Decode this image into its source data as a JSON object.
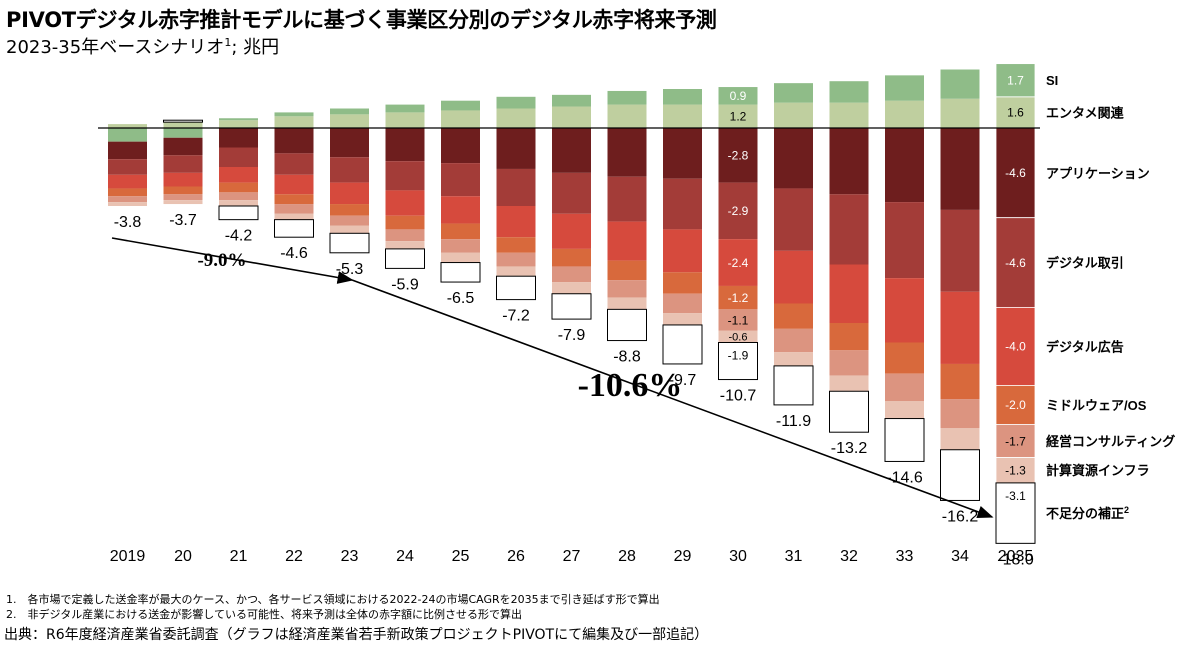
{
  "title": "PIVOTデジタル赤字推計モデルに基づく事業区分別のデジタル赤字将来予測",
  "subtitle": "2023-35年ベースシナリオ",
  "subtitle_sup": "1",
  "subtitle_unit": "; 兆円",
  "footnotes": [
    "1.　各市場で定義した送金率が最大のケース、かつ、各サービス領域における2022-24の市場CAGRを2035まで引き延ばす形で算出",
    "2.　非デジタル産業における送金が影響している可能性、将来予測は全体の赤字額に比例させる形で算出"
  ],
  "source": "出典：R6年度経済産業省委託調査（グラフは経済産業省若手新政策プロジェクトPIVOTにて編集及び一部追記）",
  "colors": {
    "entertainment": "#bfcf9f",
    "si": "#8fbc88",
    "application": "#6e1e1e",
    "digital_trade": "#a33c38",
    "digital_ad": "#d64a3d",
    "middleware": "#d8693c",
    "consulting": "#dc9480",
    "computing_infra": "#e9c2b2",
    "correction_border": "#000000"
  },
  "chart_data": {
    "type": "bar",
    "stacked": true,
    "unit": "兆円",
    "categories": [
      "2019",
      "20",
      "21",
      "22",
      "23",
      "24",
      "25",
      "26",
      "27",
      "28",
      "29",
      "30",
      "31",
      "32",
      "33",
      "34",
      "2035"
    ],
    "totals": [
      -3.8,
      -3.7,
      -4.2,
      -4.6,
      -5.3,
      -5.9,
      -6.5,
      -7.2,
      -7.9,
      -8.8,
      -9.7,
      -10.7,
      -11.9,
      -13.2,
      -14.6,
      -16.2,
      -18.0
    ],
    "series": [
      {
        "name": "エンタメ関連",
        "color_key": "entertainment",
        "labels": {
          "11": "1.2",
          "16": "1.6"
        },
        "values": [
          0.2,
          0.3,
          0.4,
          0.6,
          0.7,
          0.8,
          0.9,
          1.0,
          1.1,
          1.2,
          1.2,
          1.2,
          1.3,
          1.3,
          1.4,
          1.5,
          1.6
        ]
      },
      {
        "name": "SI",
        "color_key": "si",
        "labels": {
          "11": "0.9",
          "16": "1.7"
        },
        "values": [
          -0.7,
          -0.5,
          0.1,
          0.2,
          0.3,
          0.4,
          0.5,
          0.6,
          0.6,
          0.7,
          0.8,
          0.9,
          1.0,
          1.1,
          1.3,
          1.5,
          1.7
        ]
      },
      {
        "name": "アプリケーション",
        "color_key": "application",
        "labels": {
          "11": "-2.8",
          "16": "-4.6"
        },
        "values": [
          -0.9,
          -0.9,
          -1.0,
          -1.3,
          -1.5,
          -1.7,
          -1.8,
          -2.1,
          -2.3,
          -2.5,
          -2.6,
          -2.8,
          -3.1,
          -3.4,
          -3.8,
          -4.2,
          -4.6
        ]
      },
      {
        "name": "デジタル取引",
        "color_key": "digital_trade",
        "labels": {
          "11": "-2.9",
          "16": "-4.6"
        },
        "values": [
          -0.8,
          -0.9,
          -1.0,
          -1.1,
          -1.3,
          -1.5,
          -1.7,
          -1.9,
          -2.1,
          -2.3,
          -2.6,
          -2.9,
          -3.2,
          -3.6,
          -3.9,
          -4.2,
          -4.6
        ]
      },
      {
        "name": "デジタル広告",
        "color_key": "digital_ad",
        "labels": {
          "11": "-2.4",
          "16": "-4.0"
        },
        "values": [
          -0.7,
          -0.7,
          -0.8,
          -1.0,
          -1.1,
          -1.3,
          -1.4,
          -1.6,
          -1.8,
          -2.0,
          -2.2,
          -2.4,
          -2.7,
          -3.0,
          -3.3,
          -3.7,
          -4.0
        ]
      },
      {
        "name": "ミドルウェア/OS",
        "color_key": "middleware",
        "labels": {
          "11": "-1.2",
          "16": "-2.0"
        },
        "values": [
          -0.4,
          -0.4,
          -0.5,
          -0.5,
          -0.6,
          -0.7,
          -0.8,
          -0.8,
          -0.9,
          -1.0,
          -1.1,
          -1.2,
          -1.3,
          -1.4,
          -1.6,
          -1.8,
          -2.0
        ]
      },
      {
        "name": "経営コンサルティング",
        "color_key": "consulting",
        "labels": {
          "11": "-1.1",
          "16": "-1.7"
        },
        "values": [
          -0.3,
          -0.3,
          -0.4,
          -0.5,
          -0.5,
          -0.6,
          -0.7,
          -0.7,
          -0.8,
          -0.9,
          -1.0,
          -1.1,
          -1.2,
          -1.3,
          -1.4,
          -1.5,
          -1.7
        ]
      },
      {
        "name": "計算資源インフラ",
        "color_key": "computing_infra",
        "labels": {
          "11": "-0.6",
          "16": "-1.3"
        },
        "values": [
          -0.2,
          -0.2,
          -0.3,
          -0.3,
          -0.4,
          -0.4,
          -0.5,
          -0.5,
          -0.6,
          -0.6,
          -0.6,
          -0.6,
          -0.7,
          -0.8,
          -0.9,
          -1.1,
          -1.3
        ]
      },
      {
        "name": "不足分の補正",
        "name_sup": "2",
        "color_key": "correction_border",
        "labels": {
          "11": "-1.9",
          "16": "-3.1"
        },
        "values": [
          0.0,
          0.1,
          -0.7,
          -0.9,
          -1.0,
          -1.0,
          -1.0,
          -1.2,
          -1.3,
          -1.6,
          -2.0,
          -1.9,
          -2.0,
          -2.1,
          -2.2,
          -2.6,
          -3.1
        ]
      }
    ],
    "cagr_annotations": [
      "-9.0%",
      "-10.6%"
    ]
  }
}
